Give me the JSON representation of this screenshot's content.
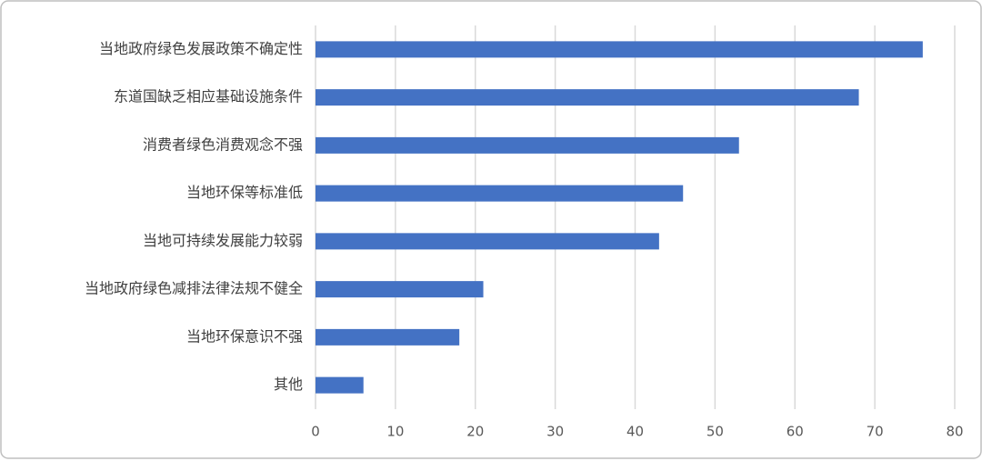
{
  "chart_data": {
    "type": "hbar",
    "categories": [
      "当地政府绿色发展政策不确定性",
      "东道国缺乏相应基础设施条件",
      "消费者绿色消费观念不强",
      "当地环保等标准低",
      "当地可持续发展能力较弱",
      "当地政府绿色减排法律法规不健全",
      "当地环保意识不强",
      "其他"
    ],
    "values": [
      76,
      68,
      53,
      46,
      43,
      21,
      18,
      6
    ],
    "color": "#4472c4",
    "xlim": [
      0,
      80
    ],
    "xticks": [
      0,
      10,
      20,
      30,
      40,
      50,
      60,
      70,
      80
    ],
    "grid": true
  }
}
